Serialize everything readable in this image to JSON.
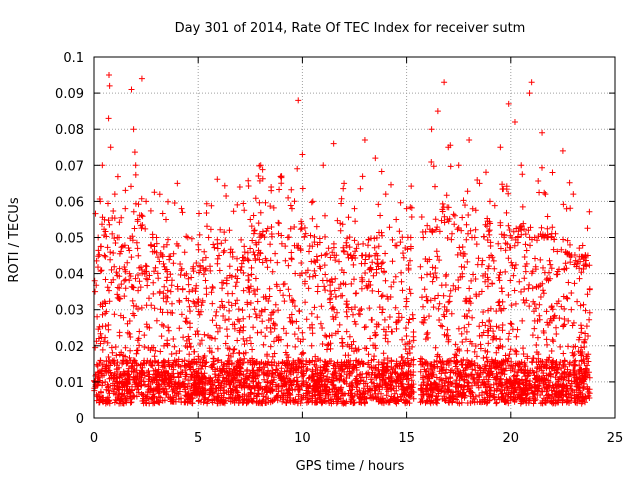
{
  "chart_data": {
    "type": "scatter",
    "title": "Day 301 of 2014, Rate Of TEC Index for receiver sutm",
    "xlabel": "GPS time / hours",
    "ylabel": "ROTI / TECUs",
    "xlim": [
      0,
      25
    ],
    "ylim": [
      0,
      0.1
    ],
    "x_ticks": [
      0,
      5,
      10,
      15,
      20,
      25
    ],
    "x_tick_labels": [
      "0",
      "5",
      "10",
      "15",
      "20",
      "25"
    ],
    "y_ticks": [
      0,
      0.01,
      0.02,
      0.03,
      0.04,
      0.05,
      0.06,
      0.07,
      0.08,
      0.09,
      0.1
    ],
    "y_tick_labels": [
      "0",
      "0.01",
      "0.02",
      "0.03",
      "0.04",
      "0.05",
      "0.06",
      "0.07",
      "0.08",
      "0.09",
      "0.1"
    ],
    "grid": true,
    "marker": "+",
    "colors": {
      "points": "#ff0000",
      "grid": "#a0a0a0",
      "axes": "#000000"
    },
    "data_gap": [
      15.35,
      15.65
    ],
    "series": [
      {
        "x": [
          0.05,
          0.2,
          0.3,
          0.4,
          0.5,
          0.7,
          0.72,
          0.75,
          0.8,
          1.0,
          1.2,
          1.5,
          1.8,
          1.9,
          2.0,
          2.1,
          2.3,
          2.5,
          3.0,
          3.5,
          4.0,
          4.2,
          4.5,
          5.0,
          5.5,
          6.0,
          6.5,
          7.0,
          7.5,
          8.0,
          8.5,
          9.0,
          9.5,
          9.8,
          10.0,
          10.5,
          11.0,
          11.5,
          12.0,
          12.5,
          13.0,
          13.5,
          14.0,
          14.5,
          15.0,
          15.2,
          15.8,
          16.2,
          16.5,
          16.8,
          17.0,
          17.5,
          18.0,
          18.5,
          19.0,
          19.5,
          19.9,
          20.2,
          20.5,
          20.9,
          21.0,
          21.5,
          22.0,
          22.5,
          23.0,
          23.5,
          23.7
        ],
        "y": [
          0.035,
          0.05,
          0.06,
          0.07,
          0.045,
          0.083,
          0.095,
          0.092,
          0.075,
          0.062,
          0.05,
          0.058,
          0.091,
          0.08,
          0.07,
          0.055,
          0.094,
          0.06,
          0.05,
          0.048,
          0.065,
          0.058,
          0.05,
          0.048,
          0.05,
          0.045,
          0.052,
          0.064,
          0.055,
          0.07,
          0.064,
          0.067,
          0.058,
          0.088,
          0.073,
          0.06,
          0.07,
          0.076,
          0.065,
          0.058,
          0.077,
          0.072,
          0.062,
          0.055,
          0.058,
          0.05,
          0.05,
          0.08,
          0.085,
          0.093,
          0.075,
          0.07,
          0.077,
          0.065,
          0.06,
          0.075,
          0.087,
          0.082,
          0.07,
          0.09,
          0.093,
          0.079,
          0.068,
          0.074,
          0.062,
          0.044,
          0.045
        ]
      }
    ]
  }
}
